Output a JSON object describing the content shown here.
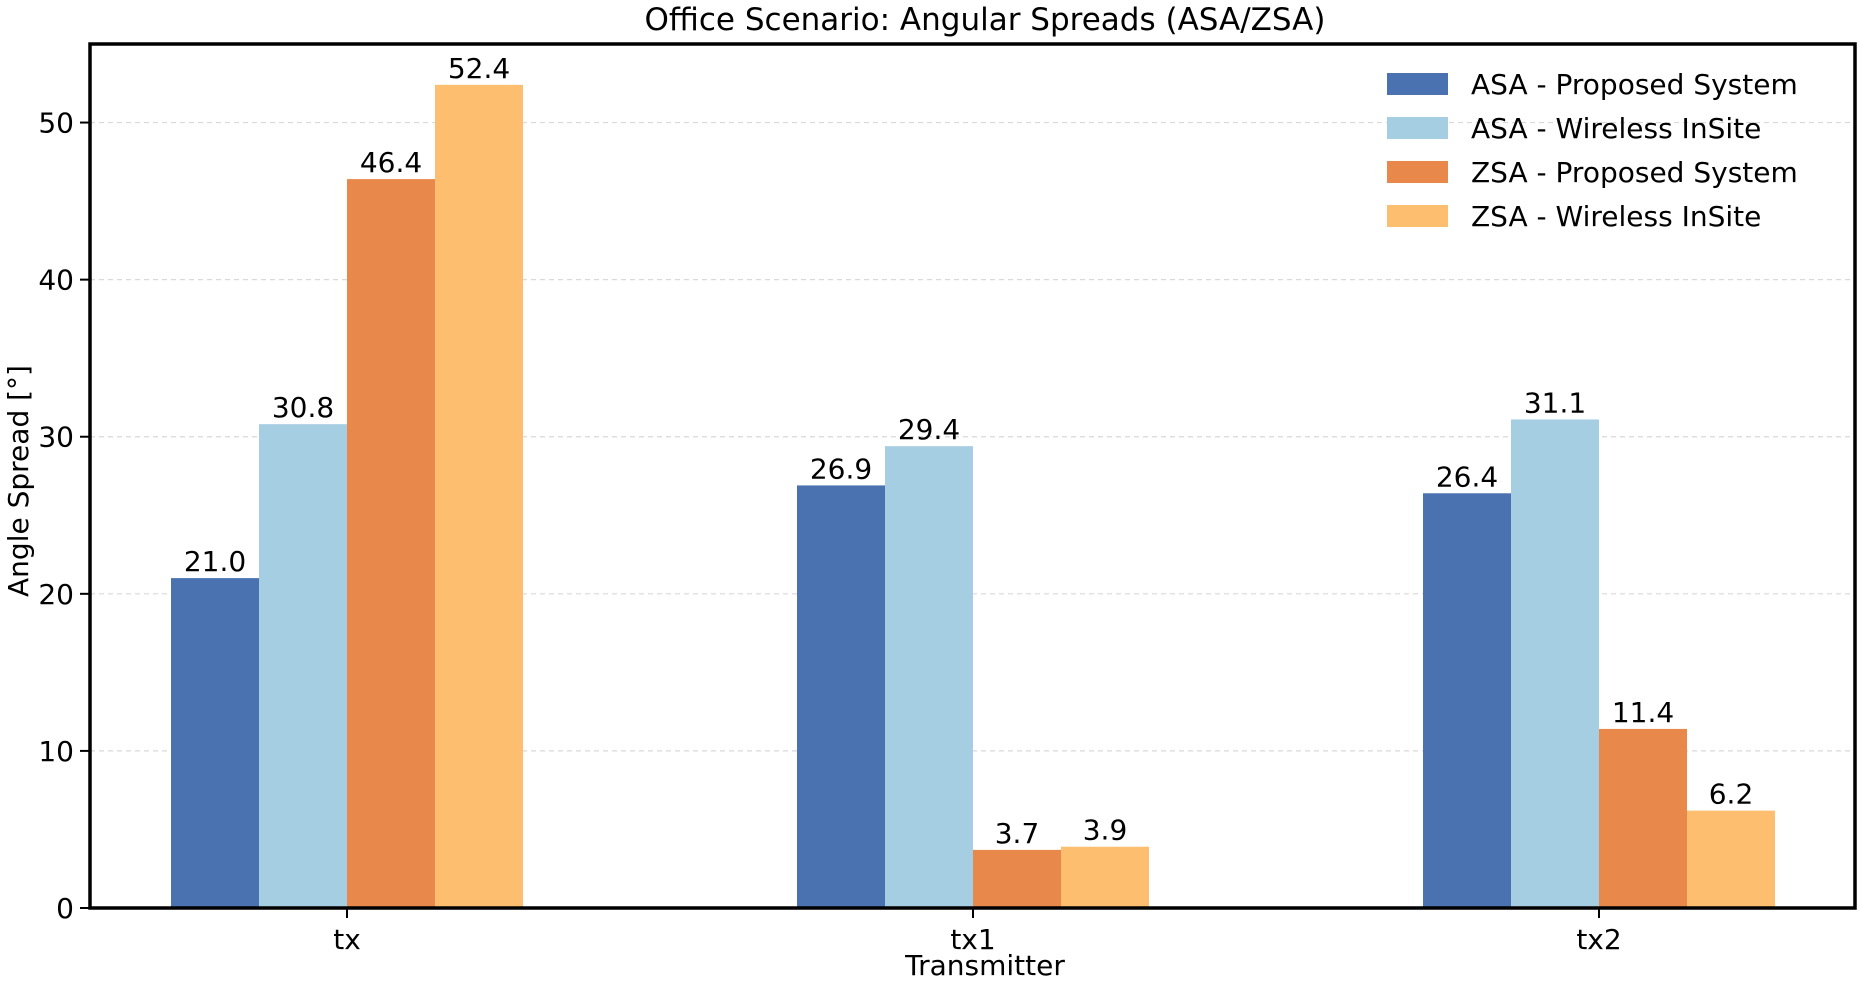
{
  "chart_data": {
    "type": "bar",
    "title": "Office Scenario: Angular Spreads (ASA/ZSA)",
    "xlabel": "Transmitter",
    "ylabel": "Angle Spread [°]",
    "categories": [
      "tx",
      "tx1",
      "tx2"
    ],
    "ylim": [
      0,
      55
    ],
    "yticks": [
      0,
      10,
      20,
      30,
      40,
      50
    ],
    "grid": "y-dashed",
    "legend_position": "top-right",
    "series": [
      {
        "name": "ASA - Proposed System",
        "color": "#4a72b0",
        "values": [
          21.0,
          26.9,
          26.4
        ]
      },
      {
        "name": "ASA - Wireless InSite",
        "color": "#a6cee3",
        "values": [
          30.8,
          29.4,
          31.1
        ]
      },
      {
        "name": "ZSA - Proposed System",
        "color": "#e8884a",
        "values": [
          46.4,
          3.7,
          11.4
        ]
      },
      {
        "name": "ZSA - Wireless InSite",
        "color": "#fdbf6f",
        "values": [
          52.4,
          3.9,
          6.2
        ]
      }
    ],
    "data_label_decimals": 1
  }
}
